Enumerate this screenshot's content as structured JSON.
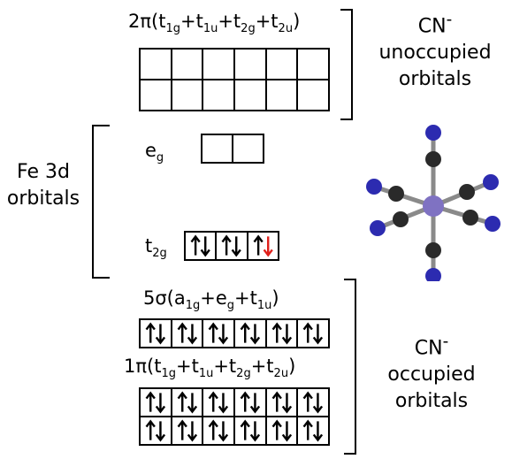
{
  "top_label": {
    "pre": "2π(t",
    "s1": "1g",
    "p1": "+t",
    "s2": "1u",
    "p2": "+t",
    "s3": "2g",
    "p3": "+t",
    "s4": "2u",
    "post": ")"
  },
  "cn_unocc": {
    "line1": "CN",
    "sup": "-",
    "line2": "unoccupied",
    "line3": "orbitals"
  },
  "fe": {
    "line1": "Fe 3d",
    "line2": "orbitals"
  },
  "eg_label": {
    "base": "e",
    "sub": "g"
  },
  "t2g_label": {
    "base": "t",
    "sub": "2g"
  },
  "mid_label": {
    "pre": "5σ(a",
    "s1": "1g",
    "p1": "+e",
    "s2": "g",
    "p2": "+t",
    "s3": "1u",
    "post": ")"
  },
  "bot_label": {
    "pre": "1π(t",
    "s1": "1g",
    "p1": "+t",
    "s2": "1u",
    "p2": "+t",
    "s3": "2g",
    "p3": "+t",
    "s4": "2u",
    "post": ")"
  },
  "cn_occ": {
    "line1": "CN",
    "sup": "-",
    "line2": "occupied",
    "line3": "orbitals"
  },
  "orbital_boxes": {
    "unoccupied_2pi": {
      "rows": 2,
      "cols": 6,
      "electrons": "empty"
    },
    "eg": {
      "rows": 1,
      "cols": 2,
      "electrons": "empty"
    },
    "t2g": {
      "rows": 1,
      "cols": 3,
      "electrons": [
        "paired",
        "paired",
        "paired-red-down"
      ]
    },
    "occupied_5sigma": {
      "rows": 1,
      "cols": 6,
      "electrons": "paired"
    },
    "occupied_1pi": {
      "rows": 2,
      "cols": 6,
      "electrons": "paired"
    }
  },
  "colors": {
    "iron": "#7f72c2",
    "nitrogen": "#2c2bb0",
    "carbon": "#2a2a2a",
    "spin_red": "#e0201b",
    "line": "#000000"
  }
}
